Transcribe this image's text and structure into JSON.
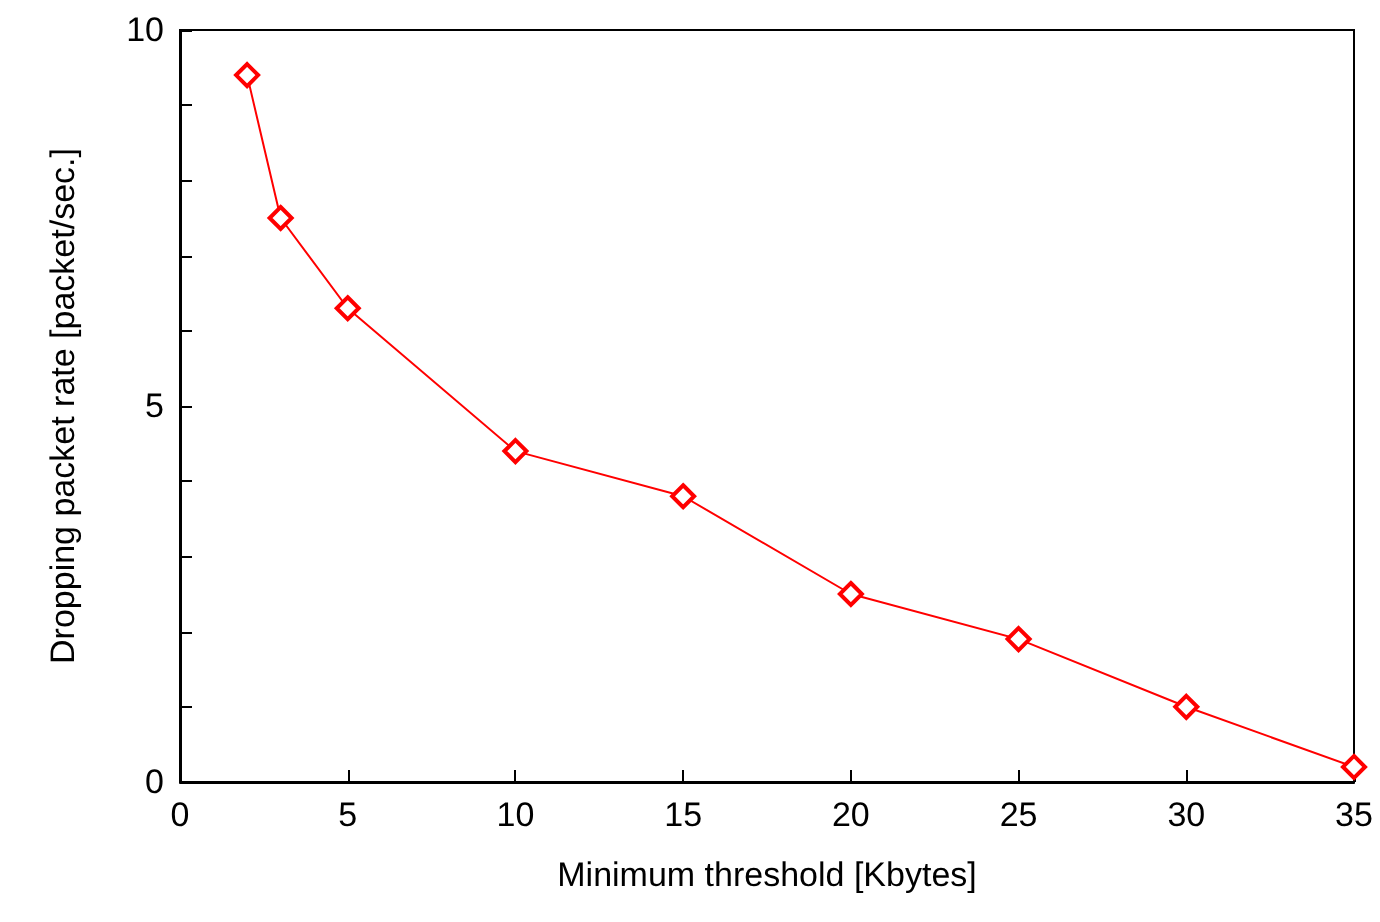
{
  "chart_data": {
    "type": "line",
    "xlabel": "Minimum threshold [Kbytes]",
    "ylabel": "Dropping packet rate [packet/sec.]",
    "x": [
      2,
      3,
      5,
      10,
      15,
      20,
      25,
      30,
      35
    ],
    "series": [
      {
        "color": "#ff0000",
        "values": [
          9.4,
          7.5,
          6.3,
          4.4,
          3.8,
          2.5,
          1.9,
          1.0,
          0.2
        ]
      }
    ],
    "xlim": [
      0,
      35
    ],
    "xticks": [
      0,
      5,
      10,
      15,
      20,
      25,
      30,
      35
    ],
    "ylim": [
      0,
      10
    ],
    "yticks": [
      0,
      {
        "value": 1,
        "label": null
      },
      {
        "value": 2,
        "label": null
      },
      {
        "value": 3,
        "label": null
      },
      {
        "value": 4,
        "label": null
      },
      5,
      {
        "value": 6,
        "label": null
      },
      {
        "value": 7,
        "label": null
      },
      {
        "value": 8,
        "label": null
      },
      {
        "value": 9,
        "label": null
      },
      10
    ],
    "grid": false,
    "marker": "diamond",
    "line_style": "solid"
  }
}
